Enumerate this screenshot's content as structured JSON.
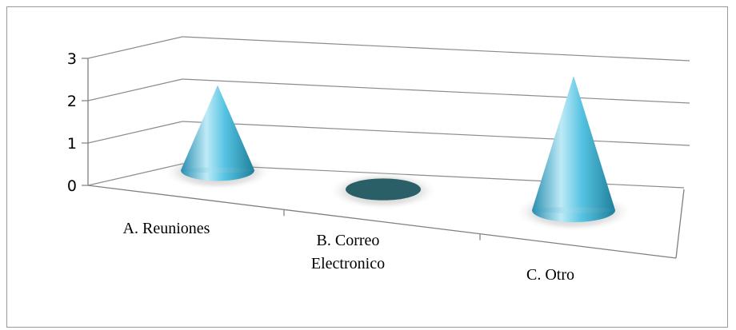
{
  "chart_data": {
    "type": "bar",
    "style": "3d-cone",
    "categories": [
      "A. Reuniones",
      "B. Correo Electronico",
      "C. Otro"
    ],
    "category_lines": [
      [
        "A. Reuniones"
      ],
      [
        "B. Correo",
        "Electronico"
      ],
      [
        "C. Otro"
      ]
    ],
    "values": [
      1.9,
      0,
      3
    ],
    "ylim": [
      0,
      3
    ],
    "yticks": [
      "0",
      "1",
      "2",
      "3"
    ],
    "grid": true,
    "legend": "none",
    "colors": {
      "cone_light": "#bfeaf7",
      "cone_mid": "#4fc0e0",
      "cone_dark": "#1f7f9a",
      "zero_ellipse": "#2b5f68",
      "gridline": "#8c8c8c"
    }
  }
}
